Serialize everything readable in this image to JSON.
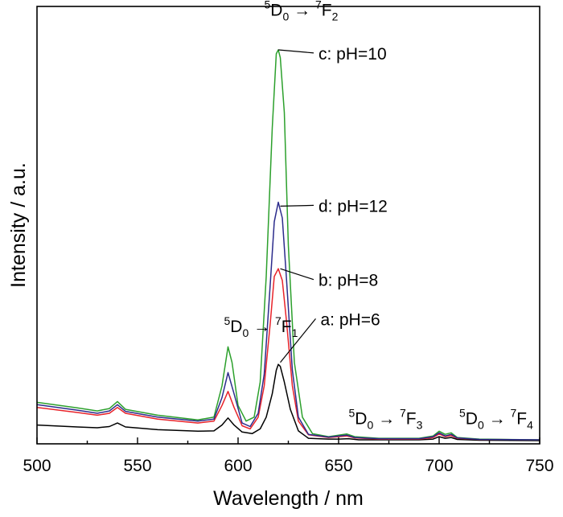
{
  "chart_data": {
    "type": "line",
    "title": "",
    "xlabel": "Wavelength / nm",
    "ylabel": "Intensity / a.u.",
    "xlim": [
      500,
      750
    ],
    "ylim": [
      0,
      1.1
    ],
    "x_ticks": [
      500,
      550,
      600,
      650,
      700,
      750
    ],
    "y_ticks_shown": false,
    "grid": false,
    "legend": "none",
    "series": [
      {
        "name": "a: pH=6",
        "color": "#000000",
        "points": [
          [
            500,
            0.04
          ],
          [
            520,
            0.035
          ],
          [
            530,
            0.033
          ],
          [
            536,
            0.036
          ],
          [
            540,
            0.045
          ],
          [
            544,
            0.035
          ],
          [
            560,
            0.028
          ],
          [
            580,
            0.024
          ],
          [
            588,
            0.025
          ],
          [
            592,
            0.04
          ],
          [
            595,
            0.058
          ],
          [
            598,
            0.04
          ],
          [
            602,
            0.022
          ],
          [
            607,
            0.018
          ],
          [
            611,
            0.03
          ],
          [
            614,
            0.06
          ],
          [
            617,
            0.12
          ],
          [
            619,
            0.18
          ],
          [
            620,
            0.195
          ],
          [
            621,
            0.19
          ],
          [
            623,
            0.15
          ],
          [
            626,
            0.08
          ],
          [
            630,
            0.025
          ],
          [
            635,
            0.006
          ],
          [
            645,
            0.004
          ],
          [
            650,
            0.004
          ],
          [
            655,
            0.005
          ],
          [
            660,
            0.002
          ],
          [
            690,
            0.002
          ],
          [
            697,
            0.004
          ],
          [
            700,
            0.01
          ],
          [
            703,
            0.006
          ],
          [
            706,
            0.008
          ],
          [
            709,
            0.003
          ],
          [
            720,
            0.001
          ],
          [
            750,
            0.0
          ]
        ]
      },
      {
        "name": "b: pH=8",
        "color": "#e8232a",
        "points": [
          [
            500,
            0.085
          ],
          [
            520,
            0.072
          ],
          [
            530,
            0.065
          ],
          [
            536,
            0.07
          ],
          [
            540,
            0.085
          ],
          [
            544,
            0.07
          ],
          [
            560,
            0.055
          ],
          [
            580,
            0.045
          ],
          [
            588,
            0.05
          ],
          [
            592,
            0.09
          ],
          [
            595,
            0.126
          ],
          [
            598,
            0.085
          ],
          [
            602,
            0.038
          ],
          [
            606,
            0.03
          ],
          [
            610,
            0.06
          ],
          [
            613,
            0.14
          ],
          [
            616,
            0.3
          ],
          [
            618,
            0.42
          ],
          [
            620,
            0.44
          ],
          [
            622,
            0.41
          ],
          [
            624,
            0.31
          ],
          [
            627,
            0.14
          ],
          [
            630,
            0.05
          ],
          [
            635,
            0.015
          ],
          [
            645,
            0.008
          ],
          [
            650,
            0.01
          ],
          [
            654,
            0.012
          ],
          [
            658,
            0.007
          ],
          [
            670,
            0.004
          ],
          [
            690,
            0.004
          ],
          [
            697,
            0.008
          ],
          [
            700,
            0.017
          ],
          [
            703,
            0.01
          ],
          [
            706,
            0.013
          ],
          [
            709,
            0.006
          ],
          [
            720,
            0.003
          ],
          [
            750,
            0.002
          ]
        ]
      },
      {
        "name": "c: pH=10",
        "color": "#2ca02c",
        "points": [
          [
            500,
            0.098
          ],
          [
            520,
            0.084
          ],
          [
            530,
            0.076
          ],
          [
            536,
            0.082
          ],
          [
            540,
            0.1
          ],
          [
            544,
            0.08
          ],
          [
            560,
            0.065
          ],
          [
            580,
            0.053
          ],
          [
            588,
            0.06
          ],
          [
            592,
            0.14
          ],
          [
            595,
            0.24
          ],
          [
            597,
            0.2
          ],
          [
            600,
            0.09
          ],
          [
            604,
            0.05
          ],
          [
            608,
            0.06
          ],
          [
            611,
            0.15
          ],
          [
            614,
            0.42
          ],
          [
            617,
            0.8
          ],
          [
            619,
            0.99
          ],
          [
            620,
            1.0
          ],
          [
            621,
            0.98
          ],
          [
            623,
            0.84
          ],
          [
            625,
            0.5
          ],
          [
            628,
            0.2
          ],
          [
            632,
            0.06
          ],
          [
            637,
            0.018
          ],
          [
            645,
            0.01
          ],
          [
            650,
            0.014
          ],
          [
            654,
            0.017
          ],
          [
            658,
            0.01
          ],
          [
            670,
            0.006
          ],
          [
            690,
            0.006
          ],
          [
            697,
            0.012
          ],
          [
            700,
            0.024
          ],
          [
            703,
            0.016
          ],
          [
            706,
            0.02
          ],
          [
            709,
            0.008
          ],
          [
            720,
            0.004
          ],
          [
            750,
            0.002
          ]
        ]
      },
      {
        "name": "d: pH=12",
        "color": "#2c2c8c",
        "points": [
          [
            500,
            0.092
          ],
          [
            520,
            0.078
          ],
          [
            530,
            0.07
          ],
          [
            536,
            0.076
          ],
          [
            540,
            0.092
          ],
          [
            544,
            0.075
          ],
          [
            560,
            0.06
          ],
          [
            580,
            0.05
          ],
          [
            588,
            0.055
          ],
          [
            592,
            0.11
          ],
          [
            595,
            0.174
          ],
          [
            598,
            0.12
          ],
          [
            602,
            0.045
          ],
          [
            606,
            0.036
          ],
          [
            610,
            0.07
          ],
          [
            613,
            0.17
          ],
          [
            616,
            0.4
          ],
          [
            618,
            0.56
          ],
          [
            620,
            0.61
          ],
          [
            622,
            0.57
          ],
          [
            624,
            0.42
          ],
          [
            627,
            0.18
          ],
          [
            630,
            0.06
          ],
          [
            635,
            0.016
          ],
          [
            645,
            0.009
          ],
          [
            650,
            0.012
          ],
          [
            654,
            0.014
          ],
          [
            658,
            0.008
          ],
          [
            670,
            0.005
          ],
          [
            690,
            0.005
          ],
          [
            697,
            0.01
          ],
          [
            700,
            0.02
          ],
          [
            703,
            0.012
          ],
          [
            706,
            0.016
          ],
          [
            709,
            0.007
          ],
          [
            720,
            0.003
          ],
          [
            750,
            0.002
          ]
        ]
      }
    ],
    "annotations": [
      {
        "text": "c: pH=10",
        "x": 640,
        "y": 0.99,
        "target": [
          620,
          1.0
        ]
      },
      {
        "text": "d: pH=12",
        "x": 640,
        "y": 0.6,
        "target": [
          621,
          0.6
        ]
      },
      {
        "text": "b: pH=8",
        "x": 640,
        "y": 0.41,
        "target": [
          621,
          0.44
        ]
      },
      {
        "text": "a: pH=6",
        "x": 641,
        "y": 0.31,
        "target": [
          621,
          0.2
        ]
      }
    ],
    "transitions": [
      {
        "upper_sup": "5",
        "upper": "D",
        "upper_sub": "0",
        "arrow": "→",
        "lower_sup": "7",
        "lower": "F",
        "lower_sub": "2",
        "x": 613,
        "y": 1.1
      },
      {
        "upper_sup": "5",
        "upper": "D",
        "upper_sub": "0",
        "arrow": "→",
        "lower_sup": "7",
        "lower": "F",
        "lower_sub": "1",
        "x": 593,
        "y": 0.29
      },
      {
        "upper_sup": "5",
        "upper": "D",
        "upper_sub": "0",
        "arrow": "→",
        "lower_sup": "7",
        "lower": "F",
        "lower_sub": "3",
        "x": 655,
        "y": 0.055
      },
      {
        "upper_sup": "5",
        "upper": "D",
        "upper_sub": "0",
        "arrow": "→",
        "lower_sup": "7",
        "lower": "F",
        "lower_sub": "4",
        "x": 710,
        "y": 0.055
      }
    ]
  }
}
